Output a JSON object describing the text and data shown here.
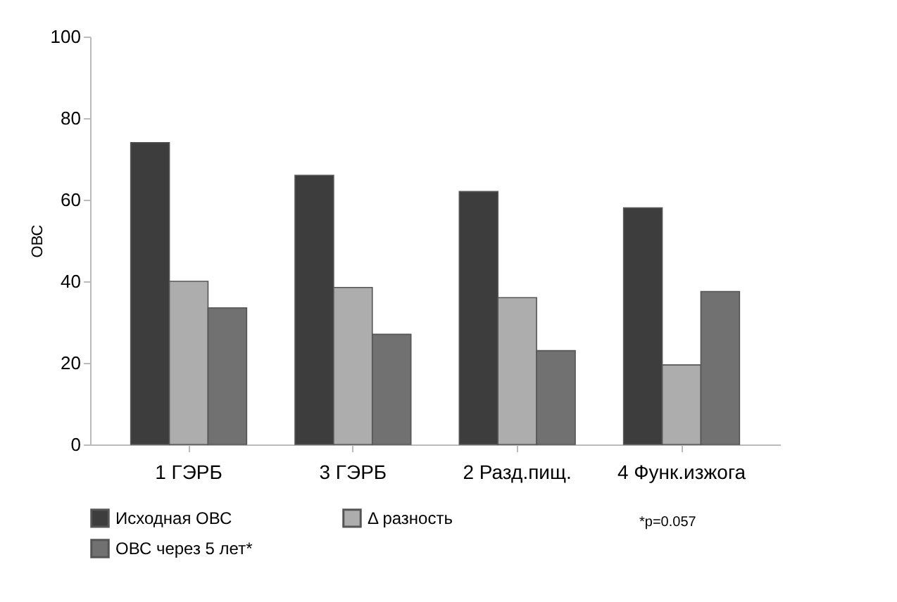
{
  "chart_data": {
    "type": "bar",
    "ylabel": "ОВС",
    "categories": [
      "1 ГЭРБ",
      "3 ГЭРБ",
      "2 Разд.пищ.",
      "4 Функ.изжога"
    ],
    "series": [
      {
        "name": "Исходная ОВС",
        "color": "#3d3d3d",
        "values": [
          74,
          66,
          62,
          58
        ]
      },
      {
        "name": "Δ разность",
        "color": "#adadad",
        "values": [
          40,
          38.5,
          36,
          19.5
        ]
      },
      {
        "name": "ОВС через 5 лет*",
        "color": "#717171",
        "values": [
          33.5,
          27,
          23,
          37.5
        ]
      }
    ],
    "ylim": [
      0,
      100
    ],
    "yticks": [
      0,
      20,
      40,
      60,
      80,
      100
    ],
    "grid": false,
    "legend": "bottom",
    "annotations": [
      "*p=0.057"
    ]
  }
}
